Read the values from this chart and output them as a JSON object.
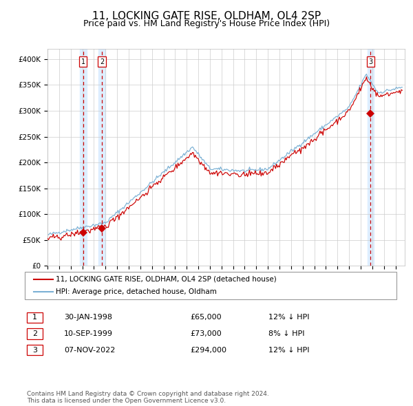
{
  "title": "11, LOCKING GATE RISE, OLDHAM, OL4 2SP",
  "subtitle": "Price paid vs. HM Land Registry's House Price Index (HPI)",
  "ylim": [
    0,
    420000
  ],
  "yticks": [
    0,
    50000,
    100000,
    150000,
    200000,
    250000,
    300000,
    350000,
    400000
  ],
  "ytick_labels": [
    "£0",
    "£50K",
    "£100K",
    "£150K",
    "£200K",
    "£250K",
    "£300K",
    "£350K",
    "£400K"
  ],
  "xlim_start": 1995.0,
  "xlim_end": 2025.8,
  "sale_dates": [
    1998.08,
    1999.69,
    2022.85
  ],
  "sale_prices": [
    65000,
    73000,
    294000
  ],
  "sale_labels": [
    "1",
    "2",
    "3"
  ],
  "sale_color": "#cc0000",
  "hpi_color": "#7ab0d4",
  "background_shade_color": "#ddeeff",
  "legend_label_sale": "11, LOCKING GATE RISE, OLDHAM, OL4 2SP (detached house)",
  "legend_label_hpi": "HPI: Average price, detached house, Oldham",
  "table_entries": [
    {
      "num": "1",
      "date": "30-JAN-1998",
      "price": "£65,000",
      "hpi": "12% ↓ HPI"
    },
    {
      "num": "2",
      "date": "10-SEP-1999",
      "price": "£73,000",
      "hpi": "8% ↓ HPI"
    },
    {
      "num": "3",
      "date": "07-NOV-2022",
      "price": "£294,000",
      "hpi": "12% ↓ HPI"
    }
  ],
  "footnote": "Contains HM Land Registry data © Crown copyright and database right 2024.\nThis data is licensed under the Open Government Licence v3.0.",
  "title_fontsize": 11,
  "subtitle_fontsize": 9,
  "tick_fontsize": 7.5,
  "grid_color": "#cccccc",
  "background_color": "#ffffff"
}
